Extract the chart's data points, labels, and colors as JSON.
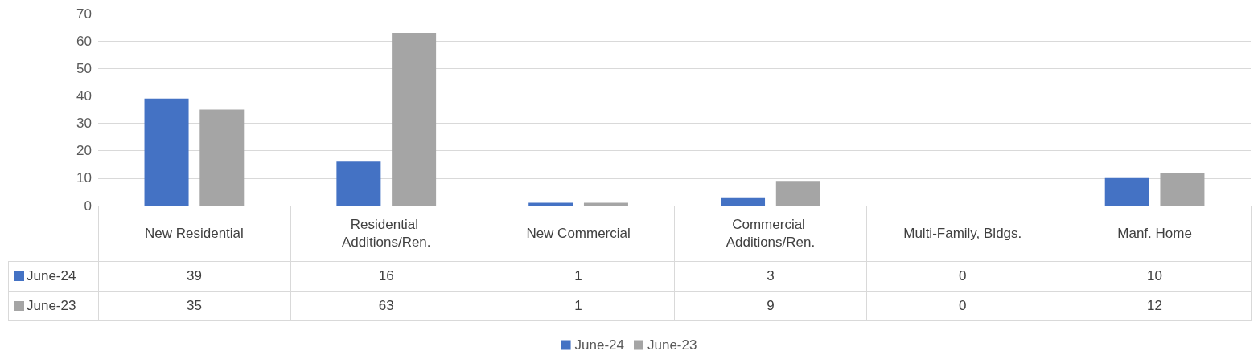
{
  "chart_data": {
    "type": "bar",
    "categories": [
      "New Residential",
      "Residential Additions/Ren.",
      "New Commercial",
      "Commercial Additions/Ren.",
      "Multi-Family, Bldgs.",
      "Manf. Home"
    ],
    "series": [
      {
        "name": "June-24",
        "color": "#4472c4",
        "values": [
          39,
          16,
          1,
          3,
          0,
          10
        ]
      },
      {
        "name": "June-23",
        "color": "#a5a5a5",
        "values": [
          35,
          63,
          1,
          9,
          0,
          12
        ]
      }
    ],
    "ylim": [
      0,
      70
    ],
    "yticks": [
      0,
      10,
      20,
      30,
      40,
      50,
      60,
      70
    ],
    "grid": "y",
    "legend": "bottom",
    "data_labels": true
  }
}
